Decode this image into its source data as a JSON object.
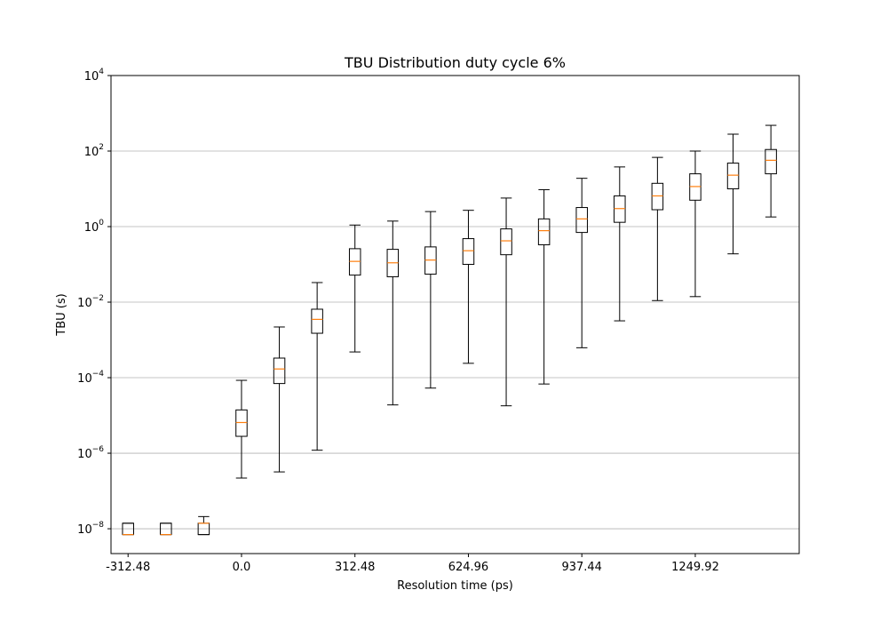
{
  "chart_data": {
    "type": "box",
    "title": "TBU Distribution duty cycle 6%",
    "xlabel": "Resolution time (ps)",
    "ylabel": "TBU (s)",
    "y_scale": "log",
    "ylim": [
      2.2e-09,
      10000
    ],
    "xlim": [
      -359.5,
      1536.2
    ],
    "grid": "y-major",
    "x_ticks": [
      {
        "value": -312.48,
        "label": "-312.48"
      },
      {
        "value": 0.0,
        "label": "0.0"
      },
      {
        "value": 312.48,
        "label": "312.48"
      },
      {
        "value": 624.96,
        "label": "624.96"
      },
      {
        "value": 937.44,
        "label": "937.44"
      },
      {
        "value": 1249.92,
        "label": "1249.92"
      }
    ],
    "y_ticks": [
      {
        "value": 1e-08,
        "base": "10",
        "exp": "−8"
      },
      {
        "value": 1e-06,
        "base": "10",
        "exp": "−6"
      },
      {
        "value": 0.0001,
        "base": "10",
        "exp": "−4"
      },
      {
        "value": 0.01,
        "base": "10",
        "exp": "−2"
      },
      {
        "value": 1,
        "base": "10",
        "exp": "0"
      },
      {
        "value": 100,
        "base": "10",
        "exp": "2"
      },
      {
        "value": 10000,
        "base": "10",
        "exp": "4"
      }
    ],
    "colors": {
      "median": "#ff7f0e",
      "box": "#000000",
      "grid": "#b0b0b0"
    },
    "boxes": [
      {
        "x": -312.48,
        "whislo": 7e-09,
        "q1": 7e-09,
        "med": 7e-09,
        "q3": 1.4e-08,
        "whishi": 1.4e-08
      },
      {
        "x": -208.32,
        "whislo": 7e-09,
        "q1": 7e-09,
        "med": 7e-09,
        "q3": 1.4e-08,
        "whishi": 1.4e-08
      },
      {
        "x": -104.16,
        "whislo": 7e-09,
        "q1": 7e-09,
        "med": 1.4e-08,
        "q3": 1.4e-08,
        "whishi": 2.1e-08
      },
      {
        "x": 0.0,
        "whislo": 2.2e-07,
        "q1": 2.8e-06,
        "med": 6.5e-06,
        "q3": 1.4e-05,
        "whishi": 8.5e-05
      },
      {
        "x": 104.16,
        "whislo": 3.2e-07,
        "q1": 7e-05,
        "med": 0.00017,
        "q3": 0.00033,
        "whishi": 0.0022
      },
      {
        "x": 208.32,
        "whislo": 1.2e-06,
        "q1": 0.0015,
        "med": 0.0035,
        "q3": 0.0065,
        "whishi": 0.033
      },
      {
        "x": 312.48,
        "whislo": 0.00048,
        "q1": 0.052,
        "med": 0.12,
        "q3": 0.26,
        "whishi": 1.1
      },
      {
        "x": 416.64,
        "whislo": 1.9e-05,
        "q1": 0.047,
        "med": 0.11,
        "q3": 0.25,
        "whishi": 1.4
      },
      {
        "x": 520.8,
        "whislo": 5.3e-05,
        "q1": 0.055,
        "med": 0.13,
        "q3": 0.29,
        "whishi": 2.5
      },
      {
        "x": 624.96,
        "whislo": 0.00024,
        "q1": 0.1,
        "med": 0.23,
        "q3": 0.48,
        "whishi": 2.7
      },
      {
        "x": 729.12,
        "whislo": 1.8e-05,
        "q1": 0.18,
        "med": 0.42,
        "q3": 0.87,
        "whishi": 5.7
      },
      {
        "x": 833.28,
        "whislo": 6.8e-05,
        "q1": 0.33,
        "med": 0.78,
        "q3": 1.6,
        "whishi": 9.5
      },
      {
        "x": 937.44,
        "whislo": 0.00062,
        "q1": 0.7,
        "med": 1.6,
        "q3": 3.2,
        "whishi": 19
      },
      {
        "x": 1041.6,
        "whislo": 0.0032,
        "q1": 1.3,
        "med": 3.0,
        "q3": 6.5,
        "whishi": 38
      },
      {
        "x": 1145.76,
        "whislo": 0.011,
        "q1": 2.8,
        "med": 6.5,
        "q3": 14,
        "whishi": 68
      },
      {
        "x": 1249.92,
        "whislo": 0.014,
        "q1": 5.0,
        "med": 11.5,
        "q3": 25,
        "whishi": 100
      },
      {
        "x": 1354.08,
        "whislo": 0.19,
        "q1": 10,
        "med": 23,
        "q3": 48,
        "whishi": 280
      },
      {
        "x": 1458.24,
        "whislo": 1.8,
        "q1": 25,
        "med": 57,
        "q3": 110,
        "whishi": 480
      }
    ]
  }
}
